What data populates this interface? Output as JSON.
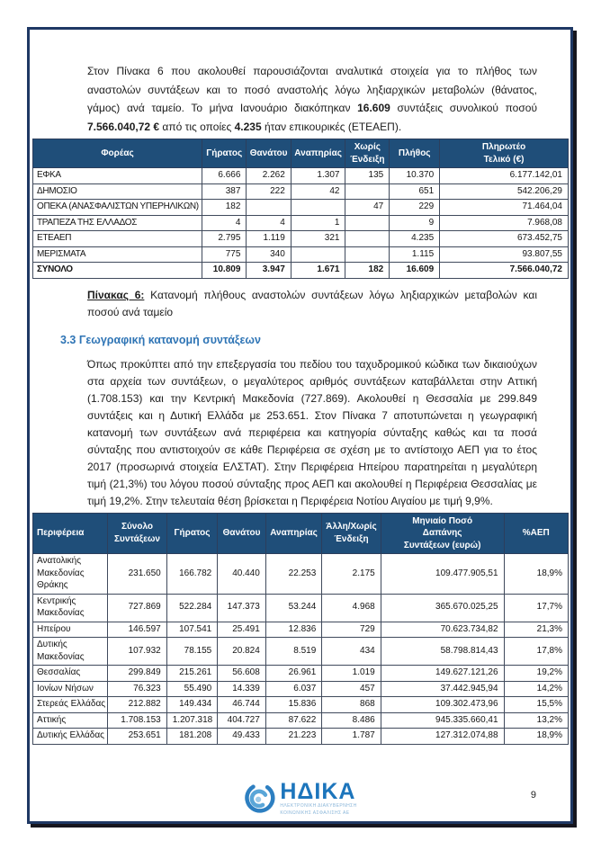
{
  "document": {
    "intro_segments": [
      {
        "t": "Στον Πίνακα 6 που ακολουθεί παρουσιάζονται αναλυτικά στοιχεία για το πλήθος των αναστολών συντάξεων και το ποσό αναστολής λόγω ληξιαρχικών μεταβολών (θάνατος, γάμος) ανά ταμείο. Το μήνα Ιανουάριο διακόπηκαν ",
        "b": false
      },
      {
        "t": "16.609",
        "b": true
      },
      {
        "t": " συντάξεις συνολικού ποσού ",
        "b": false
      },
      {
        "t": "7.566.040,72 €",
        "b": true
      },
      {
        "t": " από τις οποίες ",
        "b": false
      },
      {
        "t": "4.235",
        "b": true
      },
      {
        "t": " ήταν επικουρικές (ΕΤΕΑΕΠ).",
        "b": false
      }
    ],
    "caption": {
      "label": "Πίνακας 6:",
      "text": " Κατανομή πλήθους αναστολών συντάξεων λόγω ληξιαρχικών μεταβολών και ποσού ανά ταμείο"
    },
    "section_heading": "3.3 Γεωγραφική κατανομή συντάξεων",
    "geo_segments": [
      {
        "t": "Όπως προκύπτει από την επεξεργασία του πεδίου του ταχυδρομικού κώδικα των δικαιούχων στα αρχεία των συντάξεων, ο μεγαλύτερος αριθμός συντάξεων καταβάλλεται στην Αττική (1.708.153) και την Κεντρική Μακεδονία (727.869). Ακολουθεί η Θεσσαλία με 299.849 συντάξεις και η Δυτική Ελλάδα με 253.651. Στον Πίνακα 7 αποτυπώνεται η γεωγραφική κατανομή των συντάξεων ανά περιφέρεια και κατηγορία σύνταξης καθώς και τα ποσά σύνταξης που αντιστοιχούν σε κάθε Περιφέρεια σε σχέση με το αντίστοιχο ΑΕΠ για το έτος 2017 (προσωρινά στοιχεία ΕΛΣΤΑΤ). Στην Περιφέρεια Ηπείρου παρατηρείται η μεγαλύτερη τιμή (21,3%) του λόγου ποσού σύνταξης προς ΑΕΠ και ακολουθεί η Περιφέρεια Θεσσαλίας με τιμή 19,2%. Στην τελευταία θέση βρίσκεται η Περιφέρεια Νοτίου Αιγαίου με τιμή 9,9%.",
        "b": false
      }
    ]
  },
  "table6": {
    "headers": [
      "Φορέας",
      "Γήρατος",
      "Θανάτου",
      "Αναπηρίας",
      "Χωρίς Ένδειξη",
      "Πλήθος",
      "Πληρωτέο Τελικό (€)"
    ],
    "rows": [
      [
        "ΕΦΚΑ",
        "6.666",
        "2.262",
        "1.307",
        "135",
        "10.370",
        "6.177.142,01"
      ],
      [
        "ΔΗΜΟΣΙΟ",
        "387",
        "222",
        "42",
        "",
        "651",
        "542.206,29"
      ],
      [
        "ΟΠΕΚΑ (ΑΝΑΣΦΑΛΙΣΤΩΝ ΥΠΕΡΗΛΙΚΩΝ)",
        "182",
        "",
        "",
        "47",
        "229",
        "71.464,04"
      ],
      [
        "ΤΡΑΠΕΖΑ ΤΗΣ ΕΛΛΑΔΟΣ",
        "4",
        "4",
        "1",
        "",
        "9",
        "7.968,08"
      ],
      [
        "ΕΤΕΑΕΠ",
        "2.795",
        "1.119",
        "321",
        "",
        "4.235",
        "673.452,75"
      ],
      [
        "ΜΕΡΙΣΜΑΤΑ",
        "775",
        "340",
        "",
        "",
        "1.115",
        "93.807,55"
      ]
    ],
    "total_row": [
      "ΣΥΝΟΛΟ",
      "10.809",
      "3.947",
      "1.671",
      "182",
      "16.609",
      "7.566.040,72"
    ]
  },
  "table7": {
    "headers": [
      "Περιφέρεια",
      "Σύνολο Συντάξεων",
      "Γήρατος",
      "Θανάτου",
      "Αναπηρίας",
      "Άλλη/Χωρίς Ένδειξη",
      "Μηνιαίο Ποσό Δαπάνης Συντάξεων (ευρώ)",
      "%ΑΕΠ"
    ],
    "rows": [
      [
        "Ανατολικής Μακεδονίας Θράκης",
        "231.650",
        "166.782",
        "40.440",
        "22.253",
        "2.175",
        "109.477.905,51",
        "18,9%"
      ],
      [
        "Κεντρικής Μακεδονίας",
        "727.869",
        "522.284",
        "147.373",
        "53.244",
        "4.968",
        "365.670.025,25",
        "17,7%"
      ],
      [
        "Ηπείρου",
        "146.597",
        "107.541",
        "25.491",
        "12.836",
        "729",
        "70.623.734,82",
        "21,3%"
      ],
      [
        "Δυτικής Μακεδονίας",
        "107.932",
        "78.155",
        "20.824",
        "8.519",
        "434",
        "58.798.814,43",
        "17,8%"
      ],
      [
        "Θεσσαλίας",
        "299.849",
        "215.261",
        "56.608",
        "26.961",
        "1.019",
        "149.627.121,26",
        "19,2%"
      ],
      [
        "Ιονίων Νήσων",
        "76.323",
        "55.490",
        "14.339",
        "6.037",
        "457",
        "37.442.945,94",
        "14,2%"
      ],
      [
        "Στερεάς Ελλάδας",
        "212.882",
        "149.434",
        "46.744",
        "15.836",
        "868",
        "109.302.473,96",
        "15,5%"
      ],
      [
        "Αττικής",
        "1.708.153",
        "1.207.318",
        "404.727",
        "87.622",
        "8.486",
        "945.335.660,41",
        "13,2%"
      ],
      [
        "Δυτικής Ελλάδας",
        "253.651",
        "181.208",
        "49.433",
        "21.223",
        "1.787",
        "127.312.074,88",
        "18,9%"
      ]
    ]
  },
  "footer": {
    "logo_text": "ΗΔΙΚΑ",
    "logo_subtext_line1": "ΗΛΕΚΤΡΟΝΙΚΗ ΔΙΑΚΥΒΕΡΝΗΣΗ",
    "logo_subtext_line2": "ΚΟΙΝΩΝΙΚΗΣ ΑΣΦΑΛΙΣΗΣ ΑΕ",
    "page_number": "9"
  },
  "colors": {
    "table_header_bg": "#1F4E79",
    "section_heading_blue": "#2E74B5",
    "frame_border_navy": "#1F3864",
    "logo_blue": "#1C75BC"
  }
}
